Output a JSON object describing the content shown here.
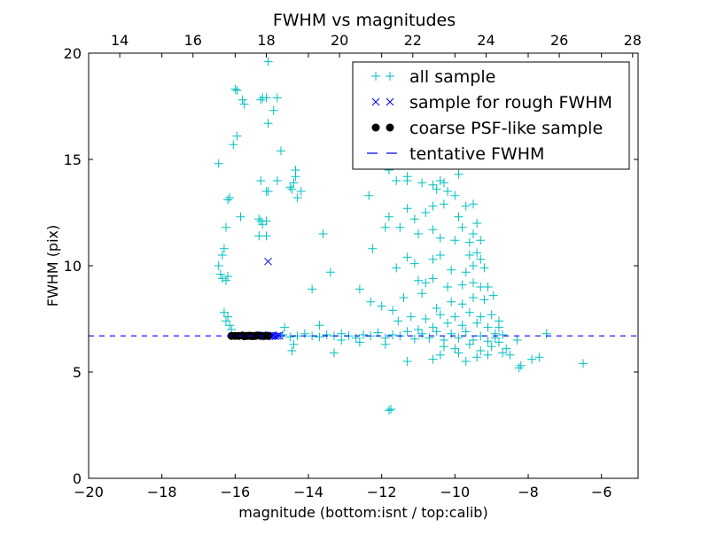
{
  "chart_data": {
    "type": "scatter",
    "title": "FWHM vs magnitudes",
    "xlabel": "magnitude (bottom:isnt / top:calib)",
    "ylabel": "FWHM (pix)",
    "xlim": [
      -20,
      -5
    ],
    "ylim": [
      0,
      20
    ],
    "xticks": [
      -20,
      -18,
      -16,
      -14,
      -12,
      -10,
      -8,
      -6
    ],
    "xtick_labels": [
      "−20",
      "−18",
      "−16",
      "−14",
      "−12",
      "−10",
      "−8",
      "−6"
    ],
    "yticks": [
      0,
      5,
      10,
      15,
      20
    ],
    "ytick_labels": [
      "0",
      "5",
      "10",
      "15",
      "20"
    ],
    "top_xlim": [
      13.15,
      28.15
    ],
    "top_xticks": [
      14,
      16,
      18,
      20,
      22,
      24,
      26,
      28
    ],
    "top_xtick_labels": [
      "14",
      "16",
      "18",
      "20",
      "22",
      "24",
      "26",
      "28"
    ],
    "grid": false,
    "legend_placement": "top-right",
    "tentative_fwhm": 6.7,
    "series": [
      {
        "name": "all sample",
        "marker": "plus",
        "color": "#00bfbf",
        "points": [
          [
            -16.0,
            18.3
          ],
          [
            -15.95,
            18.25
          ],
          [
            -15.8,
            17.8
          ],
          [
            -15.75,
            17.6
          ],
          [
            -15.3,
            17.8
          ],
          [
            -15.25,
            17.9
          ],
          [
            -15.15,
            17.9
          ],
          [
            -14.85,
            17.9
          ],
          [
            -14.95,
            17.3
          ],
          [
            -15.1,
            16.7
          ],
          [
            -15.95,
            16.1
          ],
          [
            -16.05,
            15.7
          ],
          [
            -16.45,
            14.8
          ],
          [
            -14.75,
            15.4
          ],
          [
            -15.1,
            19.6
          ],
          [
            -16.15,
            13.2
          ],
          [
            -16.2,
            13.1
          ],
          [
            -15.85,
            12.3
          ],
          [
            -15.3,
            14.0
          ],
          [
            -15.1,
            13.5
          ],
          [
            -15.15,
            13.5
          ],
          [
            -14.5,
            13.7
          ],
          [
            -14.35,
            14.5
          ],
          [
            -14.35,
            14.2
          ],
          [
            -14.4,
            13.9
          ],
          [
            -14.45,
            13.6
          ],
          [
            -14.2,
            13.5
          ],
          [
            -14.3,
            13.2
          ],
          [
            -14.85,
            14.0
          ],
          [
            -15.35,
            12.2
          ],
          [
            -15.3,
            12.1
          ],
          [
            -15.15,
            12.1
          ],
          [
            -15.25,
            11.95
          ],
          [
            -15.35,
            11.4
          ],
          [
            -15.15,
            11.4
          ],
          [
            -13.6,
            11.5
          ],
          [
            -13.4,
            9.7
          ],
          [
            -13.9,
            8.9
          ],
          [
            -16.25,
            11.8
          ],
          [
            -16.35,
            10.5
          ],
          [
            -16.3,
            10.8
          ],
          [
            -16.4,
            9.6
          ],
          [
            -16.35,
            9.4
          ],
          [
            -16.25,
            9.3
          ],
          [
            -16.2,
            9.5
          ],
          [
            -16.45,
            10.0
          ],
          [
            -16.3,
            7.8
          ],
          [
            -16.2,
            7.6
          ],
          [
            -16.25,
            7.4
          ],
          [
            -16.15,
            7.2
          ],
          [
            -16.1,
            7.0
          ],
          [
            -14.65,
            7.1
          ],
          [
            -13.7,
            7.2
          ],
          [
            -14.45,
            6.0
          ],
          [
            -14.4,
            6.3
          ],
          [
            -13.3,
            5.9
          ],
          [
            -12.6,
            8.9
          ],
          [
            -12.3,
            8.3
          ],
          [
            -12.25,
            10.8
          ],
          [
            -11.9,
            11.8
          ],
          [
            -12.35,
            13.3
          ],
          [
            -11.8,
            3.2
          ],
          [
            -11.75,
            3.25
          ],
          [
            -11.55,
            7.4
          ],
          [
            -11.8,
            12.3
          ],
          [
            -11.8,
            14.5
          ],
          [
            -11.6,
            14.0
          ],
          [
            -11.3,
            14.2
          ],
          [
            -11.3,
            14.0
          ],
          [
            -10.9,
            13.9
          ],
          [
            -10.4,
            14.0
          ],
          [
            -10.3,
            13.9
          ],
          [
            -10.6,
            13.8
          ],
          [
            -10.5,
            13.6
          ],
          [
            -10.2,
            13.5
          ],
          [
            -9.9,
            14.3
          ],
          [
            -10.0,
            13.3
          ],
          [
            -10.3,
            12.9
          ],
          [
            -10.6,
            12.8
          ],
          [
            -10.8,
            12.5
          ],
          [
            -11.3,
            12.7
          ],
          [
            -11.1,
            12.2
          ],
          [
            -11.5,
            11.8
          ],
          [
            -11.0,
            11.5
          ],
          [
            -10.6,
            11.7
          ],
          [
            -10.4,
            11.3
          ],
          [
            -10.0,
            11.2
          ],
          [
            -9.6,
            11.1
          ],
          [
            -9.8,
            11.8
          ],
          [
            -9.9,
            12.3
          ],
          [
            -9.7,
            12.8
          ],
          [
            -9.5,
            12.9
          ],
          [
            -9.4,
            12.0
          ],
          [
            -9.5,
            11.5
          ],
          [
            -9.3,
            11.2
          ],
          [
            -9.6,
            10.5
          ],
          [
            -9.4,
            10.6
          ],
          [
            -9.3,
            10.3
          ],
          [
            -9.5,
            10.0
          ],
          [
            -9.2,
            9.9
          ],
          [
            -9.7,
            9.7
          ],
          [
            -10.1,
            9.8
          ],
          [
            -10.4,
            10.5
          ],
          [
            -10.6,
            10.3
          ],
          [
            -11.1,
            10.1
          ],
          [
            -11.3,
            10.4
          ],
          [
            -11.6,
            9.9
          ],
          [
            -11.0,
            9.3
          ],
          [
            -10.8,
            9.2
          ],
          [
            -10.6,
            9.4
          ],
          [
            -10.2,
            9.0
          ],
          [
            -9.8,
            9.1
          ],
          [
            -9.5,
            9.2
          ],
          [
            -9.3,
            9.0
          ],
          [
            -9.1,
            9.0
          ],
          [
            -8.95,
            8.6
          ],
          [
            -9.2,
            8.4
          ],
          [
            -9.5,
            8.5
          ],
          [
            -9.8,
            8.2
          ],
          [
            -10.1,
            8.3
          ],
          [
            -10.5,
            8.0
          ],
          [
            -10.9,
            8.7
          ],
          [
            -11.4,
            8.5
          ],
          [
            -11.7,
            7.9
          ],
          [
            -12.0,
            8.1
          ],
          [
            -11.2,
            7.6
          ],
          [
            -10.8,
            7.5
          ],
          [
            -10.4,
            7.7
          ],
          [
            -10.0,
            7.6
          ],
          [
            -9.6,
            7.8
          ],
          [
            -9.3,
            7.6
          ],
          [
            -9.0,
            7.7
          ],
          [
            -8.8,
            7.4
          ],
          [
            -9.1,
            7.1
          ],
          [
            -9.4,
            7.3
          ],
          [
            -9.8,
            7.2
          ],
          [
            -10.2,
            7.3
          ],
          [
            -10.6,
            7.1
          ],
          [
            -11.0,
            7.0
          ],
          [
            -10.3,
            6.2
          ],
          [
            -10.0,
            6.1
          ],
          [
            -9.6,
            6.3
          ],
          [
            -9.3,
            6.0
          ],
          [
            -9.0,
            6.2
          ],
          [
            -8.8,
            6.4
          ],
          [
            -8.6,
            6.1
          ],
          [
            -8.7,
            5.9
          ],
          [
            -9.1,
            5.8
          ],
          [
            -9.4,
            5.7
          ],
          [
            -9.9,
            5.9
          ],
          [
            -10.4,
            5.8
          ],
          [
            -10.6,
            5.6
          ],
          [
            -9.7,
            5.5
          ],
          [
            -8.5,
            5.8
          ],
          [
            -8.2,
            5.3
          ],
          [
            -8.25,
            5.2
          ],
          [
            -7.9,
            5.6
          ],
          [
            -7.7,
            5.7
          ],
          [
            -7.5,
            6.8
          ],
          [
            -6.5,
            5.4
          ],
          [
            -8.3,
            6.5
          ],
          [
            -8.8,
            7.1
          ],
          [
            -8.9,
            6.8
          ],
          [
            -11.3,
            5.5
          ],
          [
            -11.9,
            6.3
          ],
          [
            -12.6,
            6.4
          ],
          [
            -13.1,
            6.5
          ],
          [
            -14.9,
            6.7
          ],
          [
            -14.7,
            6.75
          ],
          [
            -14.5,
            6.65
          ],
          [
            -14.3,
            6.7
          ],
          [
            -14.1,
            6.8
          ],
          [
            -13.9,
            6.7
          ],
          [
            -13.7,
            6.65
          ],
          [
            -13.5,
            6.75
          ],
          [
            -13.3,
            6.7
          ],
          [
            -13.1,
            6.8
          ],
          [
            -12.9,
            6.7
          ],
          [
            -12.7,
            6.6
          ],
          [
            -12.5,
            6.75
          ],
          [
            -12.3,
            6.7
          ],
          [
            -12.1,
            6.85
          ],
          [
            -11.9,
            6.6
          ],
          [
            -11.7,
            6.75
          ],
          [
            -11.5,
            6.7
          ],
          [
            -11.3,
            6.9
          ],
          [
            -11.1,
            6.55
          ],
          [
            -10.9,
            6.8
          ],
          [
            -10.7,
            6.6
          ],
          [
            -10.5,
            6.9
          ],
          [
            -10.3,
            6.5
          ],
          [
            -10.1,
            6.8
          ],
          [
            -9.9,
            6.6
          ],
          [
            -9.7,
            6.9
          ],
          [
            -9.5,
            6.5
          ],
          [
            -9.3,
            6.7
          ],
          [
            -9.1,
            6.45
          ],
          [
            -8.9,
            6.6
          ],
          [
            -8.7,
            6.75
          ]
        ]
      },
      {
        "name": "sample for rough FWHM",
        "marker": "x",
        "color": "#0000ff",
        "points": [
          [
            -15.6,
            6.7
          ],
          [
            -15.5,
            6.72
          ],
          [
            -15.4,
            6.68
          ],
          [
            -15.3,
            6.7
          ],
          [
            -15.2,
            6.73
          ],
          [
            -15.1,
            6.69
          ],
          [
            -15.05,
            6.71
          ],
          [
            -15.0,
            6.7
          ],
          [
            -14.95,
            6.72
          ],
          [
            -14.9,
            6.68
          ],
          [
            -14.85,
            6.7
          ],
          [
            -14.8,
            6.71
          ],
          [
            -15.15,
            6.66
          ],
          [
            -15.25,
            6.74
          ],
          [
            -15.35,
            6.7
          ],
          [
            -15.1,
            10.2
          ]
        ]
      },
      {
        "name": "coarse PSF-like sample",
        "marker": "circle",
        "color": "#000000",
        "points": [
          [
            -16.1,
            6.7
          ],
          [
            -16.0,
            6.7
          ],
          [
            -15.9,
            6.7
          ],
          [
            -15.8,
            6.72
          ],
          [
            -15.75,
            6.68
          ],
          [
            -15.7,
            6.7
          ],
          [
            -15.65,
            6.7
          ],
          [
            -15.6,
            6.71
          ],
          [
            -15.55,
            6.69
          ],
          [
            -15.5,
            6.7
          ],
          [
            -15.45,
            6.7
          ],
          [
            -15.4,
            6.72
          ],
          [
            -15.3,
            6.7
          ],
          [
            -15.2,
            6.7
          ],
          [
            -15.1,
            6.7
          ]
        ]
      }
    ],
    "legend": [
      "all sample",
      "sample for rough FWHM",
      "coarse PSF-like sample",
      "tentative FWHM"
    ]
  }
}
